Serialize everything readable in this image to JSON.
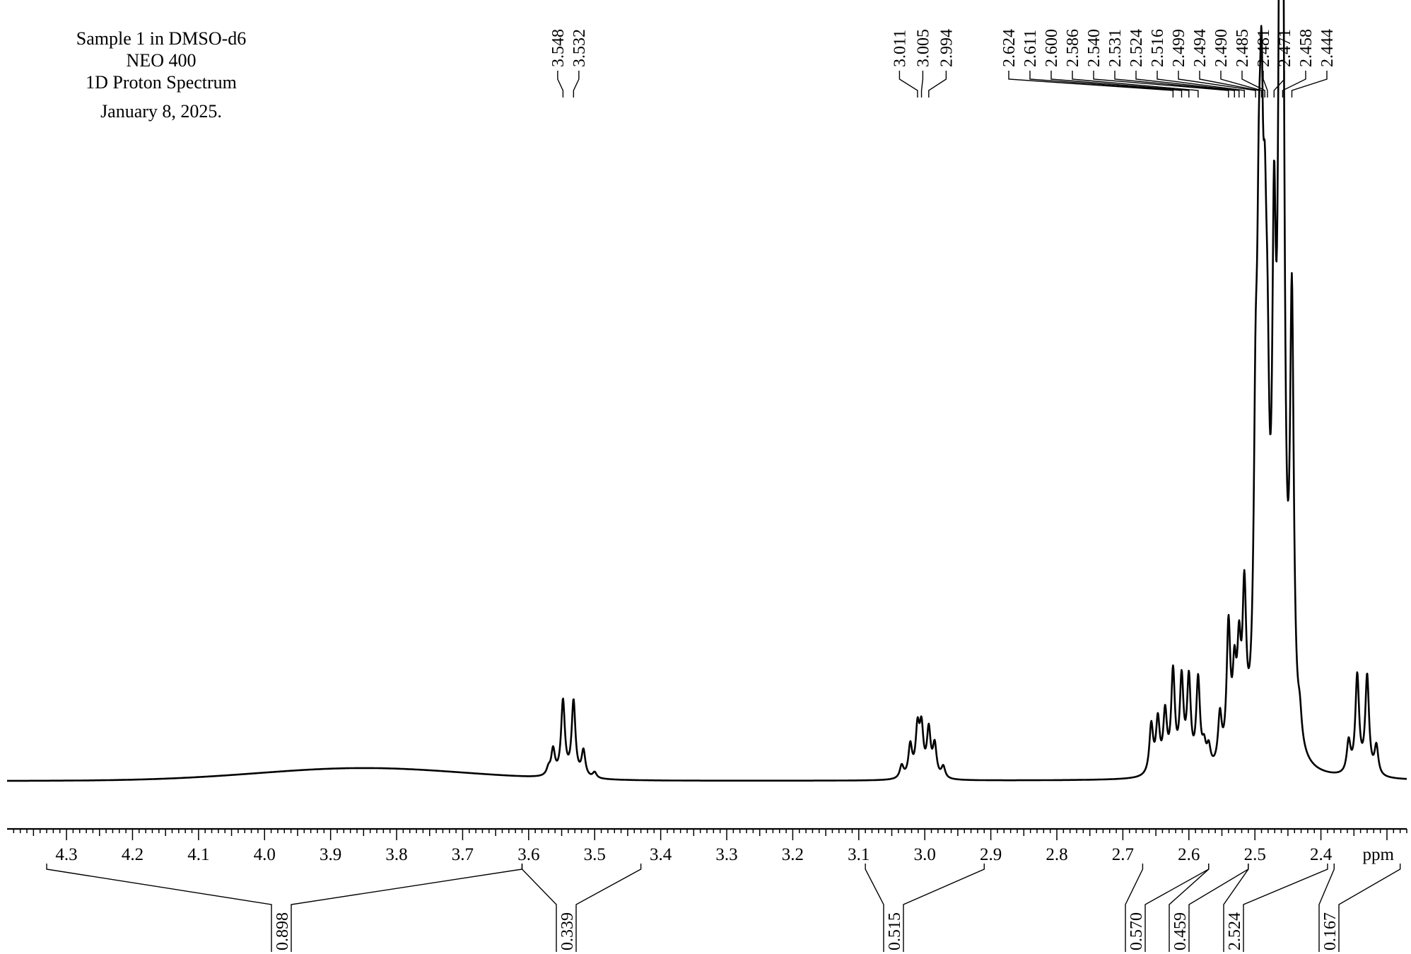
{
  "header": {
    "lines": [
      "Sample 1 in DMSO-d6",
      "NEO 400",
      "1D Proton Spectrum",
      "January 8, 2025."
    ]
  },
  "chart_data": {
    "type": "line",
    "title": "",
    "xlabel": "ppm",
    "ylabel": "",
    "x_range": [
      4.39,
      2.27
    ],
    "x_reversed": true,
    "grid": false,
    "x_ticks": [
      "4.3",
      "4.2",
      "4.1",
      "4.0",
      "3.9",
      "3.8",
      "3.7",
      "3.6",
      "3.5",
      "3.4",
      "3.3",
      "3.2",
      "3.1",
      "3.0",
      "2.9",
      "2.8",
      "2.7",
      "2.6",
      "2.5",
      "2.4"
    ],
    "peak_labels": [
      {
        "text": "3.548",
        "ppm": 3.548
      },
      {
        "text": "3.532",
        "ppm": 3.532
      },
      {
        "text": "3.011",
        "ppm": 3.011
      },
      {
        "text": "3.005",
        "ppm": 3.005
      },
      {
        "text": "2.994",
        "ppm": 2.994
      },
      {
        "text": "2.624",
        "ppm": 2.624
      },
      {
        "text": "2.611",
        "ppm": 2.611
      },
      {
        "text": "2.600",
        "ppm": 2.6
      },
      {
        "text": "2.586",
        "ppm": 2.586
      },
      {
        "text": "2.540",
        "ppm": 2.54
      },
      {
        "text": "2.531",
        "ppm": 2.531
      },
      {
        "text": "2.524",
        "ppm": 2.524
      },
      {
        "text": "2.516",
        "ppm": 2.516
      },
      {
        "text": "2.499",
        "ppm": 2.499
      },
      {
        "text": "2.494",
        "ppm": 2.494
      },
      {
        "text": "2.490",
        "ppm": 2.49
      },
      {
        "text": "2.485",
        "ppm": 2.485
      },
      {
        "text": "2.481",
        "ppm": 2.481
      },
      {
        "text": "2.471",
        "ppm": 2.471
      },
      {
        "text": "2.458",
        "ppm": 2.458
      },
      {
        "text": "2.444",
        "ppm": 2.444
      }
    ],
    "integrals": [
      {
        "from": 4.33,
        "to": 3.61,
        "value": "0.898"
      },
      {
        "from": 3.61,
        "to": 3.43,
        "value": "0.339"
      },
      {
        "from": 3.09,
        "to": 2.91,
        "value": "0.515"
      },
      {
        "from": 2.67,
        "to": 2.57,
        "value": "0.570"
      },
      {
        "from": 2.57,
        "to": 2.51,
        "value": "0.459"
      },
      {
        "from": 2.51,
        "to": 2.39,
        "value": "2.524"
      },
      {
        "from": 2.38,
        "to": 2.28,
        "value": "0.167"
      }
    ],
    "series": [
      {
        "baseline": 0.0,
        "peaks": [
          {
            "ppm": 3.57,
            "height": 0.12
          },
          {
            "ppm": 3.563,
            "height": 0.45
          },
          {
            "ppm": 3.548,
            "height": 1.3
          },
          {
            "ppm": 3.532,
            "height": 1.3
          },
          {
            "ppm": 3.517,
            "height": 0.45
          },
          {
            "ppm": 3.5,
            "height": 0.1
          },
          {
            "ppm": 3.035,
            "height": 0.22
          },
          {
            "ppm": 3.022,
            "height": 0.55
          },
          {
            "ppm": 3.011,
            "height": 0.8
          },
          {
            "ppm": 3.005,
            "height": 0.8
          },
          {
            "ppm": 2.994,
            "height": 0.8
          },
          {
            "ppm": 2.985,
            "height": 0.55
          },
          {
            "ppm": 2.972,
            "height": 0.2
          },
          {
            "ppm": 2.657,
            "height": 0.85
          },
          {
            "ppm": 2.647,
            "height": 0.9
          },
          {
            "ppm": 2.636,
            "height": 1.0
          },
          {
            "ppm": 2.624,
            "height": 1.7
          },
          {
            "ppm": 2.611,
            "height": 1.55
          },
          {
            "ppm": 2.6,
            "height": 1.55
          },
          {
            "ppm": 2.586,
            "height": 1.55
          },
          {
            "ppm": 2.577,
            "height": 0.35
          },
          {
            "ppm": 2.57,
            "height": 0.35
          },
          {
            "ppm": 2.553,
            "height": 0.85
          },
          {
            "ppm": 2.54,
            "height": 2.3
          },
          {
            "ppm": 2.531,
            "height": 1.3
          },
          {
            "ppm": 2.524,
            "height": 1.6
          },
          {
            "ppm": 2.516,
            "height": 2.6
          },
          {
            "ppm": 2.499,
            "height": 4.3
          },
          {
            "ppm": 2.494,
            "height": 5.7
          },
          {
            "ppm": 2.49,
            "height": 7.3
          },
          {
            "ppm": 2.485,
            "height": 5.2
          },
          {
            "ppm": 2.481,
            "height": 3.8
          },
          {
            "ppm": 2.471,
            "height": 7.3
          },
          {
            "ppm": 2.462,
            "height": 11.5
          },
          {
            "ppm": 2.458,
            "height": 11.5
          },
          {
            "ppm": 2.444,
            "height": 7.4
          },
          {
            "ppm": 2.432,
            "height": 0.45
          },
          {
            "ppm": 2.358,
            "height": 0.55
          },
          {
            "ppm": 2.345,
            "height": 1.7
          },
          {
            "ppm": 2.33,
            "height": 1.7
          },
          {
            "ppm": 2.316,
            "height": 0.5
          }
        ]
      }
    ]
  }
}
